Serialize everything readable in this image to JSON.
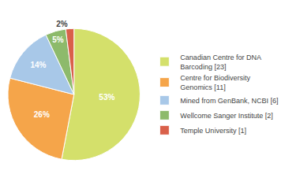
{
  "chart_data": {
    "type": "pie",
    "categories": [
      "Canadian Centre for DNA\nBarcoding [23]",
      "Centre for Biodiversity\nGenomics [11]",
      "Mined from GenBank, NCBI [6]",
      "Wellcome Sanger Institute [2]",
      "Temple University [1]"
    ],
    "values": [
      53,
      26,
      14,
      5,
      2
    ],
    "value_labels": [
      "53%",
      "26%",
      "14%",
      "5%",
      "2%"
    ],
    "colors": [
      "#d4e06b",
      "#f5a54a",
      "#a8c8e8",
      "#8dba6b",
      "#d9604a"
    ],
    "data_labels": true,
    "legend": "right"
  }
}
